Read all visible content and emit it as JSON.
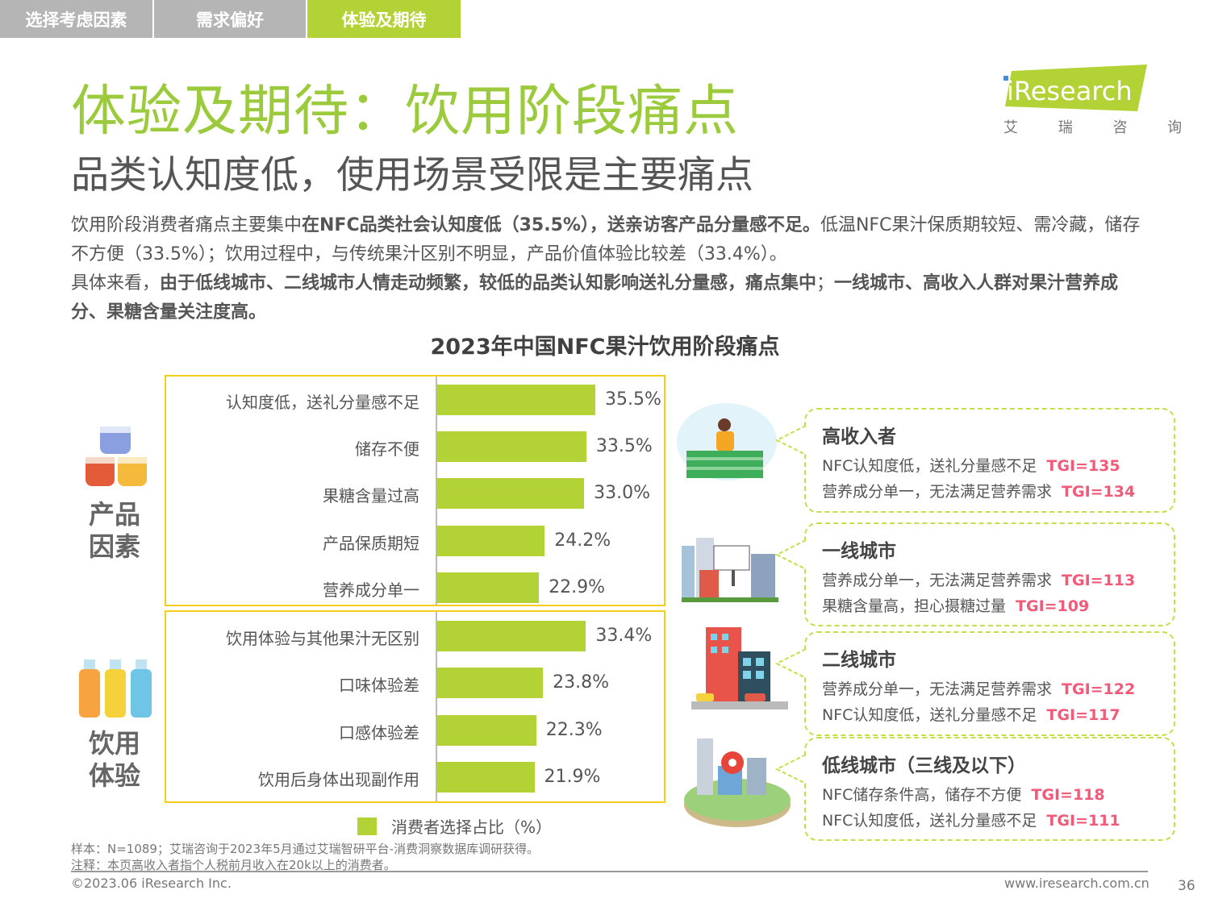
{
  "tabs": [
    {
      "label": "选择考虑因素",
      "active": false
    },
    {
      "label": "需求偏好",
      "active": false
    },
    {
      "label": "体验及期待",
      "active": true
    }
  ],
  "header": {
    "title": "体验及期待：饮用阶段痛点",
    "subtitle": "品类认知度低，使用场景受限是主要痛点"
  },
  "logo": {
    "brand": "iResearch",
    "cn": "艾 瑞 咨 询"
  },
  "body": {
    "p1a": "饮用阶段消费者痛点主要集中",
    "p1b": "在NFC品类社会认知度低（35.5%），送亲访客产品分量感不足。",
    "p1c": "低温NFC果汁保质期较短、需冷藏，储存不方便（33.5%）；饮用过程中，与传统果汁区别不明显，产品价值体验比较差（33.4%）。",
    "p2a": "具体来看，",
    "p2b": "由于低线城市、二线城市人情走动频繁，较低的品类认知影响送礼分量感，痛点集中",
    "p2c": "；",
    "p2d": "一线城市、高收入人群对果汁营养成分、果糖含量关注度高。"
  },
  "colors": {
    "accent": "#b2d235",
    "title": "#9bcb3c",
    "tgi": "#f25a7a",
    "box": "#f5cd1a"
  },
  "chart_data": {
    "type": "bar",
    "orientation": "horizontal",
    "title": "2023年中国NFC果汁饮用阶段痛点",
    "groups": [
      {
        "name": "产品因素",
        "start": 0,
        "end": 4
      },
      {
        "name": "饮用体验",
        "start": 5,
        "end": 8
      }
    ],
    "categories": [
      "认知度低，送礼分量感不足",
      "储存不便",
      "果糖含量过高",
      "产品保质期短",
      "营养成分单一",
      "饮用体验与其他果汁无区别",
      "口味体验差",
      "口感体验差",
      "饮用后身体出现副作用"
    ],
    "values": [
      35.5,
      33.5,
      33.0,
      24.2,
      22.9,
      33.4,
      23.8,
      22.3,
      21.9
    ],
    "labels": [
      "35.5%",
      "33.5%",
      "33.0%",
      "24.2%",
      "22.9%",
      "33.4%",
      "23.8%",
      "22.3%",
      "21.9%"
    ],
    "legend": "消费者选择占比（%）",
    "xlim": [
      0,
      40
    ]
  },
  "group_labels": {
    "product": [
      "产品",
      "因素"
    ],
    "experience": [
      "饮用",
      "体验"
    ]
  },
  "cards": [
    {
      "title": "高收入者",
      "lines": [
        {
          "text": "NFC认知度低，送礼分量感不足",
          "tgi": "TGI=135"
        },
        {
          "text": "营养成分单一，无法满足营养需求",
          "tgi": "TGI=134"
        }
      ]
    },
    {
      "title": "一线城市",
      "lines": [
        {
          "text": "营养成分单一，无法满足营养需求",
          "tgi": "TGI=113"
        },
        {
          "text": "果糖含量高，担心摄糖过量",
          "tgi": "TGI=109"
        }
      ]
    },
    {
      "title": "二线城市",
      "lines": [
        {
          "text": "营养成分单一，无法满足营养需求",
          "tgi": "TGI=122"
        },
        {
          "text": "NFC认知度低，送礼分量感不足",
          "tgi": "TGI=117"
        }
      ]
    },
    {
      "title": "低线城市（三线及以下）",
      "lines": [
        {
          "text": "NFC储存条件高，储存不方便",
          "tgi": "TGI=118"
        },
        {
          "text": "NFC认知度低，送礼分量感不足",
          "tgi": "TGI=111"
        }
      ]
    }
  ],
  "footer": {
    "sample": "样本：N=1089；艾瑞咨询于2023年5月通过艾瑞智研平台-消费洞察数据库调研获得。",
    "note": "注释：本页高收入者指个人税前月收入在20k以上的消费者。",
    "copyright": "©2023.06 iResearch Inc.",
    "url": "www.iresearch.com.cn",
    "page": "36"
  }
}
